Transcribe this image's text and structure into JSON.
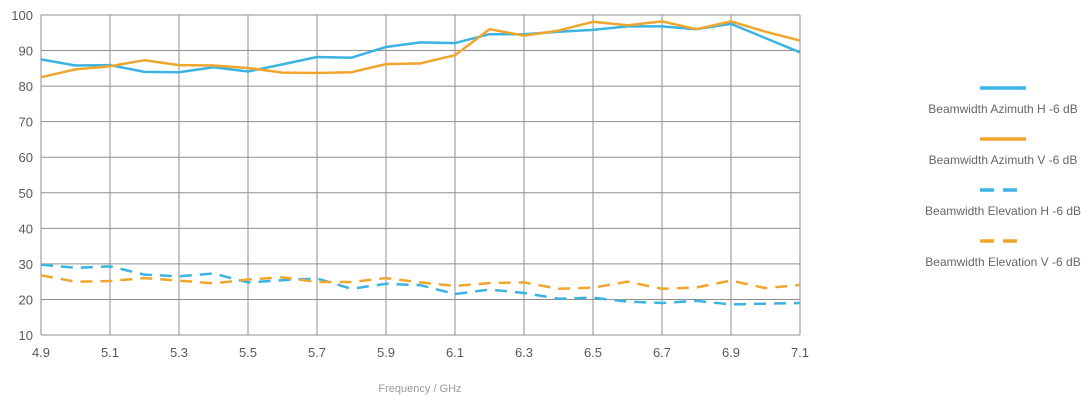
{
  "chart_data": {
    "type": "line",
    "xlabel": "Frequency / GHz",
    "ylabel": "",
    "xlim": [
      4.9,
      7.1
    ],
    "ylim": [
      10,
      100
    ],
    "x_ticks": [
      "4.9",
      "5.1",
      "5.3",
      "5.5",
      "5.7",
      "5.9",
      "6.1",
      "6.3",
      "6.5",
      "6.7",
      "6.9",
      "7.1"
    ],
    "y_ticks": [
      "10",
      "20",
      "30",
      "40",
      "50",
      "60",
      "70",
      "80",
      "90",
      "100"
    ],
    "grid": true,
    "legend_position": "right",
    "x": [
      4.9,
      5.0,
      5.1,
      5.2,
      5.3,
      5.4,
      5.5,
      5.6,
      5.7,
      5.8,
      5.9,
      6.0,
      6.1,
      6.2,
      6.3,
      6.4,
      6.5,
      6.6,
      6.7,
      6.8,
      6.9,
      7.0,
      7.1
    ],
    "series": [
      {
        "name": "Beamwidth Azimuth H -6 dB",
        "color": "#3bb3e3",
        "dash": "solid",
        "values": [
          87.5,
          85.8,
          85.9,
          84.0,
          83.9,
          85.3,
          84.1,
          86.1,
          88.2,
          88.0,
          91.0,
          92.3,
          92.1,
          94.6,
          94.6,
          95.3,
          95.8,
          96.8,
          96.8,
          96.0,
          97.5,
          93.5,
          89.5
        ]
      },
      {
        "name": "Beamwidth Azimuth V -6 dB",
        "color": "#f0a52d",
        "dash": "solid",
        "values": [
          82.5,
          84.7,
          85.6,
          87.3,
          85.9,
          85.8,
          85.1,
          83.8,
          83.7,
          83.9,
          86.2,
          86.4,
          88.7,
          96.0,
          94.2,
          95.6,
          98.1,
          97.1,
          98.2,
          96.0,
          98.2,
          95.3,
          92.8
        ]
      },
      {
        "name": "Beamwidth Elevation H -6 dB",
        "color": "#3bb3e3",
        "dash": "dashed",
        "values": [
          29.8,
          28.9,
          29.3,
          27.0,
          26.5,
          27.3,
          24.8,
          25.4,
          25.9,
          23.0,
          24.4,
          24.0,
          21.5,
          22.8,
          21.8,
          20.2,
          20.5,
          19.4,
          19.0,
          19.6,
          18.6,
          18.8,
          19.0
        ]
      },
      {
        "name": "Beamwidth Elevation V -6 dB",
        "color": "#f0a52d",
        "dash": "dashed",
        "values": [
          26.8,
          25.0,
          25.2,
          26.0,
          25.3,
          24.5,
          25.6,
          26.2,
          24.9,
          24.9,
          26.0,
          24.8,
          23.8,
          24.6,
          24.8,
          23.0,
          23.3,
          25.0,
          23.0,
          23.4,
          25.3,
          23.2,
          24.1
        ]
      }
    ]
  }
}
